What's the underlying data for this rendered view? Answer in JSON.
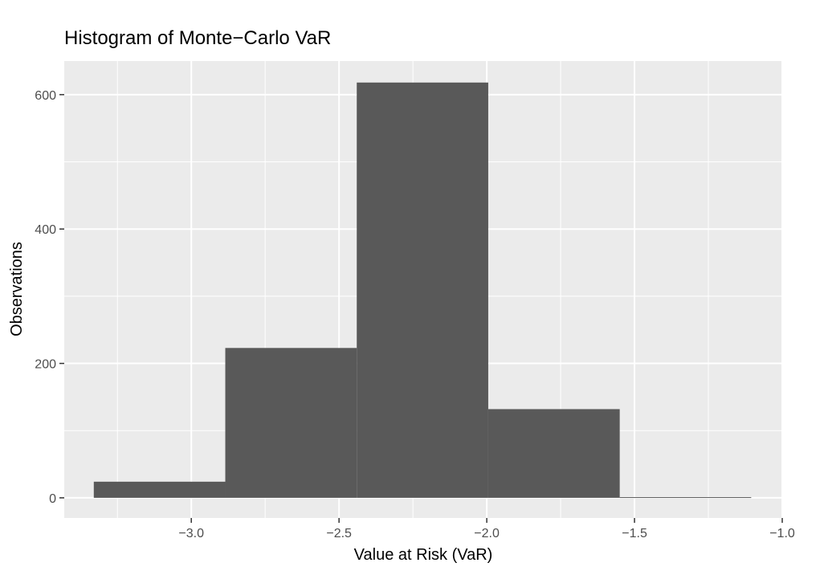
{
  "chart_data": {
    "type": "bar",
    "title": "Histogram of Monte−Carlo VaR",
    "xlabel": "Value at Risk (VaR)",
    "ylabel": "Observations",
    "xlim": [
      -3.43,
      -1.0
    ],
    "ylim": [
      -30,
      650
    ],
    "x_ticks": [
      -3.0,
      -2.5,
      -2.0,
      -1.5,
      -1.0
    ],
    "x_tick_labels": [
      "−3.0",
      "−2.5",
      "−2.0",
      "−1.5",
      "−1.0"
    ],
    "y_ticks": [
      0,
      200,
      400,
      600
    ],
    "y_tick_labels": [
      "0",
      "200",
      "400",
      "600"
    ],
    "bins": [
      {
        "x0": -3.33,
        "x1": -2.885,
        "count": 24
      },
      {
        "x0": -2.885,
        "x1": -2.44,
        "count": 223
      },
      {
        "x0": -2.44,
        "x1": -1.995,
        "count": 618
      },
      {
        "x0": -1.995,
        "x1": -1.55,
        "count": 132
      },
      {
        "x0": -1.55,
        "x1": -1.105,
        "count": 1
      }
    ],
    "bar_color": "#595959",
    "panel_background": "#EBEBEB",
    "grid_color": "#FFFFFF",
    "grid": true
  }
}
